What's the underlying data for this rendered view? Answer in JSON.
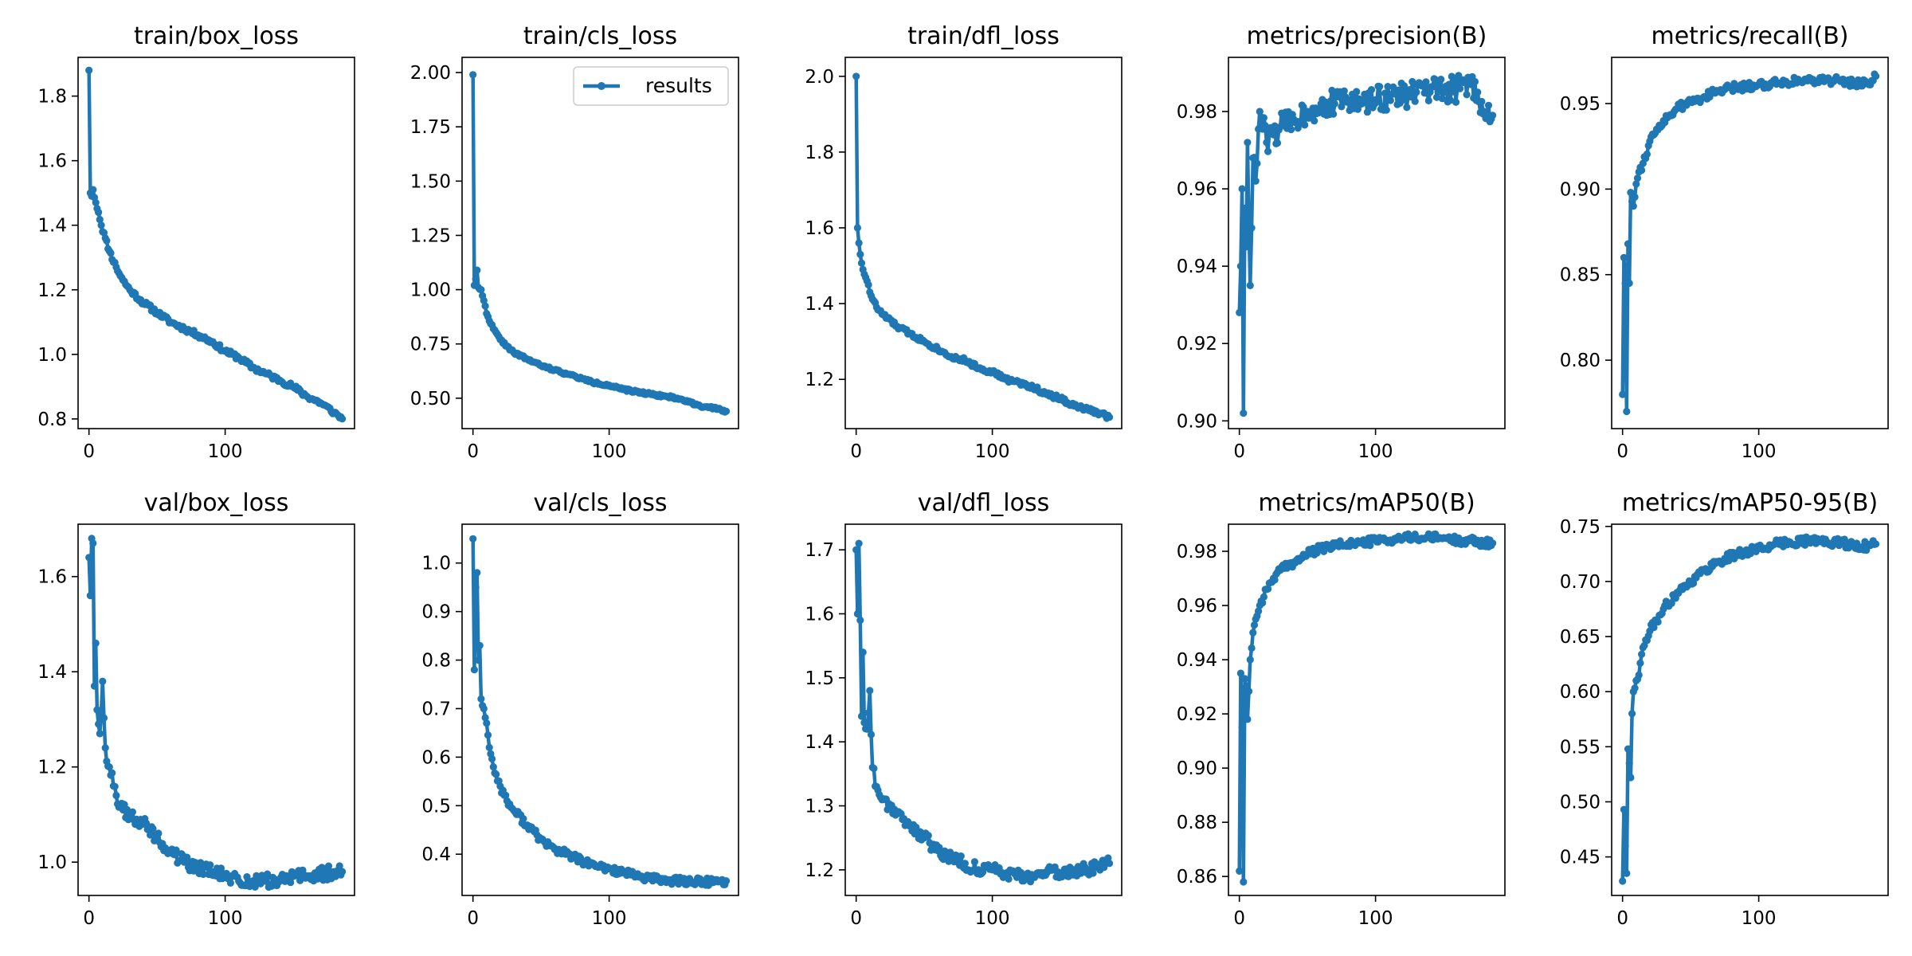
{
  "figure": {
    "legend_label": "results",
    "series_color": "#1f77b4"
  },
  "chart_data": [
    {
      "type": "line",
      "title": "train/box_loss",
      "xticks": [
        0,
        100
      ],
      "yticks": [
        "0.8",
        "1.0",
        "1.2",
        "1.4",
        "1.6",
        "1.8"
      ],
      "xlim": [
        -8,
        195
      ],
      "ylim": [
        0.77,
        1.92
      ],
      "anchors": [
        [
          0,
          1.88
        ],
        [
          1,
          1.5
        ],
        [
          2,
          1.49
        ],
        [
          3,
          1.51
        ],
        [
          5,
          1.47
        ],
        [
          7,
          1.44
        ],
        [
          9,
          1.4
        ],
        [
          12,
          1.36
        ],
        [
          15,
          1.32
        ],
        [
          20,
          1.27
        ],
        [
          25,
          1.23
        ],
        [
          30,
          1.2
        ],
        [
          40,
          1.16
        ],
        [
          50,
          1.13
        ],
        [
          60,
          1.1
        ],
        [
          70,
          1.08
        ],
        [
          80,
          1.06
        ],
        [
          90,
          1.04
        ],
        [
          100,
          1.01
        ],
        [
          110,
          0.99
        ],
        [
          120,
          0.96
        ],
        [
          130,
          0.94
        ],
        [
          140,
          0.92
        ],
        [
          150,
          0.9
        ],
        [
          160,
          0.87
        ],
        [
          170,
          0.85
        ],
        [
          180,
          0.82
        ],
        [
          186,
          0.8
        ]
      ],
      "noise": 0.008,
      "seed": 11,
      "legend": false
    },
    {
      "type": "line",
      "title": "train/cls_loss",
      "xticks": [
        0,
        100
      ],
      "yticks": [
        "0.50",
        "0.75",
        "1.00",
        "1.25",
        "1.50",
        "1.75",
        "2.00"
      ],
      "xlim": [
        -8,
        195
      ],
      "ylim": [
        0.36,
        2.07
      ],
      "anchors": [
        [
          0,
          1.99
        ],
        [
          1,
          1.02
        ],
        [
          2,
          1.05
        ],
        [
          3,
          1.09
        ],
        [
          4,
          1.01
        ],
        [
          6,
          1.0
        ],
        [
          8,
          0.95
        ],
        [
          10,
          0.89
        ],
        [
          15,
          0.82
        ],
        [
          20,
          0.77
        ],
        [
          25,
          0.74
        ],
        [
          30,
          0.71
        ],
        [
          40,
          0.68
        ],
        [
          50,
          0.65
        ],
        [
          60,
          0.63
        ],
        [
          70,
          0.61
        ],
        [
          80,
          0.59
        ],
        [
          90,
          0.57
        ],
        [
          100,
          0.56
        ],
        [
          110,
          0.54
        ],
        [
          120,
          0.53
        ],
        [
          130,
          0.52
        ],
        [
          140,
          0.51
        ],
        [
          150,
          0.5
        ],
        [
          160,
          0.48
        ],
        [
          170,
          0.46
        ],
        [
          180,
          0.45
        ],
        [
          186,
          0.44
        ]
      ],
      "noise": 0.006,
      "seed": 22,
      "legend": true
    },
    {
      "type": "line",
      "title": "train/dfl_loss",
      "xticks": [
        0,
        100
      ],
      "yticks": [
        "1.2",
        "1.4",
        "1.6",
        "1.8",
        "2.0"
      ],
      "xlim": [
        -8,
        195
      ],
      "ylim": [
        1.07,
        2.05
      ],
      "anchors": [
        [
          0,
          2.0
        ],
        [
          1,
          1.6
        ],
        [
          2,
          1.56
        ],
        [
          3,
          1.53
        ],
        [
          5,
          1.49
        ],
        [
          8,
          1.46
        ],
        [
          10,
          1.43
        ],
        [
          15,
          1.39
        ],
        [
          20,
          1.37
        ],
        [
          30,
          1.34
        ],
        [
          40,
          1.32
        ],
        [
          50,
          1.3
        ],
        [
          60,
          1.28
        ],
        [
          70,
          1.26
        ],
        [
          80,
          1.25
        ],
        [
          90,
          1.23
        ],
        [
          100,
          1.22
        ],
        [
          110,
          1.2
        ],
        [
          120,
          1.19
        ],
        [
          130,
          1.18
        ],
        [
          140,
          1.16
        ],
        [
          150,
          1.15
        ],
        [
          160,
          1.13
        ],
        [
          170,
          1.12
        ],
        [
          180,
          1.11
        ],
        [
          186,
          1.1
        ]
      ],
      "noise": 0.006,
      "seed": 33,
      "legend": false
    },
    {
      "type": "line",
      "title": "metrics/precision(B)",
      "xticks": [
        0,
        100
      ],
      "yticks": [
        "0.90",
        "0.92",
        "0.94",
        "0.96",
        "0.98"
      ],
      "xlim": [
        -8,
        195
      ],
      "ylim": [
        0.898,
        0.994
      ],
      "anchors": [
        [
          0,
          0.928
        ],
        [
          1,
          0.94
        ],
        [
          2,
          0.96
        ],
        [
          3,
          0.902
        ],
        [
          4,
          0.955
        ],
        [
          5,
          0.945
        ],
        [
          6,
          0.972
        ],
        [
          8,
          0.935
        ],
        [
          10,
          0.968
        ],
        [
          12,
          0.962
        ],
        [
          15,
          0.98
        ],
        [
          20,
          0.972
        ],
        [
          25,
          0.974
        ],
        [
          30,
          0.976
        ],
        [
          40,
          0.978
        ],
        [
          50,
          0.98
        ],
        [
          60,
          0.982
        ],
        [
          70,
          0.982
        ],
        [
          80,
          0.983
        ],
        [
          90,
          0.982
        ],
        [
          100,
          0.983
        ],
        [
          110,
          0.984
        ],
        [
          120,
          0.984
        ],
        [
          130,
          0.985
        ],
        [
          140,
          0.985
        ],
        [
          150,
          0.985
        ],
        [
          160,
          0.986
        ],
        [
          170,
          0.987
        ],
        [
          175,
          0.985
        ],
        [
          180,
          0.98
        ],
        [
          186,
          0.979
        ]
      ],
      "noise": 0.0035,
      "seed": 44,
      "legend": false
    },
    {
      "type": "line",
      "title": "metrics/recall(B)",
      "xticks": [
        0,
        100
      ],
      "yticks": [
        "0.80",
        "0.85",
        "0.90",
        "0.95"
      ],
      "xlim": [
        -8,
        195
      ],
      "ylim": [
        0.76,
        0.977
      ],
      "anchors": [
        [
          0,
          0.78
        ],
        [
          1,
          0.86
        ],
        [
          2,
          0.845
        ],
        [
          3,
          0.77
        ],
        [
          4,
          0.868
        ],
        [
          5,
          0.845
        ],
        [
          6,
          0.898
        ],
        [
          8,
          0.89
        ],
        [
          10,
          0.903
        ],
        [
          12,
          0.91
        ],
        [
          15,
          0.915
        ],
        [
          20,
          0.928
        ],
        [
          25,
          0.935
        ],
        [
          30,
          0.94
        ],
        [
          40,
          0.947
        ],
        [
          50,
          0.951
        ],
        [
          60,
          0.954
        ],
        [
          70,
          0.957
        ],
        [
          80,
          0.959
        ],
        [
          90,
          0.96
        ],
        [
          100,
          0.961
        ],
        [
          110,
          0.962
        ],
        [
          120,
          0.963
        ],
        [
          130,
          0.963
        ],
        [
          140,
          0.964
        ],
        [
          150,
          0.964
        ],
        [
          160,
          0.963
        ],
        [
          170,
          0.962
        ],
        [
          180,
          0.962
        ],
        [
          186,
          0.966
        ]
      ],
      "noise": 0.0025,
      "seed": 55,
      "legend": false
    },
    {
      "type": "line",
      "title": "val/box_loss",
      "xticks": [
        0,
        100
      ],
      "yticks": [
        "1.0",
        "1.2",
        "1.4",
        "1.6"
      ],
      "xlim": [
        -8,
        195
      ],
      "ylim": [
        0.93,
        1.71
      ],
      "anchors": [
        [
          0,
          1.64
        ],
        [
          1,
          1.56
        ],
        [
          2,
          1.68
        ],
        [
          3,
          1.67
        ],
        [
          4,
          1.37
        ],
        [
          5,
          1.46
        ],
        [
          6,
          1.32
        ],
        [
          7,
          1.29
        ],
        [
          8,
          1.27
        ],
        [
          10,
          1.38
        ],
        [
          12,
          1.24
        ],
        [
          15,
          1.2
        ],
        [
          18,
          1.16
        ],
        [
          20,
          1.14
        ],
        [
          25,
          1.11
        ],
        [
          30,
          1.1
        ],
        [
          35,
          1.09
        ],
        [
          40,
          1.08
        ],
        [
          50,
          1.05
        ],
        [
          60,
          1.02
        ],
        [
          70,
          1.0
        ],
        [
          80,
          0.99
        ],
        [
          90,
          0.98
        ],
        [
          100,
          0.97
        ],
        [
          110,
          0.96
        ],
        [
          120,
          0.96
        ],
        [
          130,
          0.96
        ],
        [
          140,
          0.96
        ],
        [
          150,
          0.97
        ],
        [
          160,
          0.97
        ],
        [
          170,
          0.975
        ],
        [
          180,
          0.98
        ],
        [
          186,
          0.98
        ]
      ],
      "noise": 0.015,
      "seed": 66,
      "legend": false
    },
    {
      "type": "line",
      "title": "val/cls_loss",
      "xticks": [
        0,
        100
      ],
      "yticks": [
        "0.4",
        "0.5",
        "0.6",
        "0.7",
        "0.8",
        "0.9",
        "1.0"
      ],
      "xlim": [
        -8,
        195
      ],
      "ylim": [
        0.315,
        1.08
      ],
      "anchors": [
        [
          0,
          1.05
        ],
        [
          1,
          0.78
        ],
        [
          2,
          0.95
        ],
        [
          3,
          0.98
        ],
        [
          4,
          0.8
        ],
        [
          5,
          0.83
        ],
        [
          6,
          0.72
        ],
        [
          8,
          0.7
        ],
        [
          10,
          0.67
        ],
        [
          12,
          0.62
        ],
        [
          15,
          0.58
        ],
        [
          20,
          0.54
        ],
        [
          25,
          0.51
        ],
        [
          30,
          0.49
        ],
        [
          40,
          0.46
        ],
        [
          50,
          0.43
        ],
        [
          60,
          0.41
        ],
        [
          70,
          0.4
        ],
        [
          80,
          0.385
        ],
        [
          90,
          0.375
        ],
        [
          100,
          0.37
        ],
        [
          110,
          0.362
        ],
        [
          120,
          0.355
        ],
        [
          130,
          0.35
        ],
        [
          140,
          0.347
        ],
        [
          150,
          0.345
        ],
        [
          160,
          0.344
        ],
        [
          170,
          0.343
        ],
        [
          180,
          0.343
        ],
        [
          186,
          0.345
        ]
      ],
      "noise": 0.008,
      "seed": 77,
      "legend": false
    },
    {
      "type": "line",
      "title": "val/dfl_loss",
      "xticks": [
        0,
        100
      ],
      "yticks": [
        "1.2",
        "1.3",
        "1.4",
        "1.5",
        "1.6",
        "1.7"
      ],
      "xlim": [
        -8,
        195
      ],
      "ylim": [
        1.16,
        1.74
      ],
      "anchors": [
        [
          0,
          1.7
        ],
        [
          1,
          1.6
        ],
        [
          2,
          1.71
        ],
        [
          3,
          1.59
        ],
        [
          4,
          1.44
        ],
        [
          5,
          1.54
        ],
        [
          6,
          1.43
        ],
        [
          8,
          1.42
        ],
        [
          10,
          1.48
        ],
        [
          12,
          1.36
        ],
        [
          15,
          1.33
        ],
        [
          20,
          1.31
        ],
        [
          25,
          1.3
        ],
        [
          30,
          1.29
        ],
        [
          35,
          1.28
        ],
        [
          40,
          1.27
        ],
        [
          50,
          1.25
        ],
        [
          60,
          1.23
        ],
        [
          70,
          1.22
        ],
        [
          80,
          1.21
        ],
        [
          90,
          1.2
        ],
        [
          100,
          1.2
        ],
        [
          110,
          1.195
        ],
        [
          120,
          1.19
        ],
        [
          130,
          1.19
        ],
        [
          140,
          1.195
        ],
        [
          150,
          1.195
        ],
        [
          160,
          1.2
        ],
        [
          170,
          1.2
        ],
        [
          180,
          1.205
        ],
        [
          186,
          1.21
        ]
      ],
      "noise": 0.01,
      "seed": 88,
      "legend": false
    },
    {
      "type": "line",
      "title": "metrics/mAP50(B)",
      "xticks": [
        0,
        100
      ],
      "yticks": [
        "0.86",
        "0.88",
        "0.90",
        "0.92",
        "0.94",
        "0.96",
        "0.98"
      ],
      "xlim": [
        -8,
        195
      ],
      "ylim": [
        0.853,
        0.99
      ],
      "anchors": [
        [
          0,
          0.862
        ],
        [
          1,
          0.935
        ],
        [
          2,
          0.915
        ],
        [
          3,
          0.858
        ],
        [
          4,
          0.933
        ],
        [
          5,
          0.93
        ],
        [
          6,
          0.918
        ],
        [
          8,
          0.94
        ],
        [
          10,
          0.95
        ],
        [
          12,
          0.955
        ],
        [
          15,
          0.96
        ],
        [
          20,
          0.966
        ],
        [
          25,
          0.97
        ],
        [
          30,
          0.973
        ],
        [
          40,
          0.976
        ],
        [
          50,
          0.979
        ],
        [
          60,
          0.981
        ],
        [
          70,
          0.982
        ],
        [
          80,
          0.983
        ],
        [
          90,
          0.983
        ],
        [
          100,
          0.984
        ],
        [
          110,
          0.984
        ],
        [
          120,
          0.985
        ],
        [
          130,
          0.985
        ],
        [
          140,
          0.985
        ],
        [
          150,
          0.985
        ],
        [
          160,
          0.984
        ],
        [
          170,
          0.984
        ],
        [
          180,
          0.983
        ],
        [
          186,
          0.983
        ]
      ],
      "noise": 0.0015,
      "seed": 99,
      "legend": false
    },
    {
      "type": "line",
      "title": "metrics/mAP50-95(B)",
      "xticks": [
        0,
        100
      ],
      "yticks": [
        "0.45",
        "0.50",
        "0.55",
        "0.60",
        "0.65",
        "0.70",
        "0.75"
      ],
      "xlim": [
        -8,
        195
      ],
      "ylim": [
        0.415,
        0.752
      ],
      "anchors": [
        [
          0,
          0.428
        ],
        [
          1,
          0.493
        ],
        [
          2,
          0.46
        ],
        [
          3,
          0.435
        ],
        [
          4,
          0.548
        ],
        [
          5,
          0.535
        ],
        [
          6,
          0.522
        ],
        [
          7,
          0.58
        ],
        [
          8,
          0.6
        ],
        [
          10,
          0.61
        ],
        [
          12,
          0.615
        ],
        [
          15,
          0.64
        ],
        [
          20,
          0.655
        ],
        [
          25,
          0.665
        ],
        [
          30,
          0.675
        ],
        [
          40,
          0.69
        ],
        [
          50,
          0.7
        ],
        [
          60,
          0.71
        ],
        [
          70,
          0.718
        ],
        [
          80,
          0.723
        ],
        [
          90,
          0.727
        ],
        [
          100,
          0.73
        ],
        [
          110,
          0.733
        ],
        [
          120,
          0.735
        ],
        [
          130,
          0.737
        ],
        [
          140,
          0.737
        ],
        [
          150,
          0.736
        ],
        [
          160,
          0.735
        ],
        [
          170,
          0.733
        ],
        [
          180,
          0.732
        ],
        [
          186,
          0.734
        ]
      ],
      "noise": 0.004,
      "seed": 111,
      "legend": false
    }
  ]
}
